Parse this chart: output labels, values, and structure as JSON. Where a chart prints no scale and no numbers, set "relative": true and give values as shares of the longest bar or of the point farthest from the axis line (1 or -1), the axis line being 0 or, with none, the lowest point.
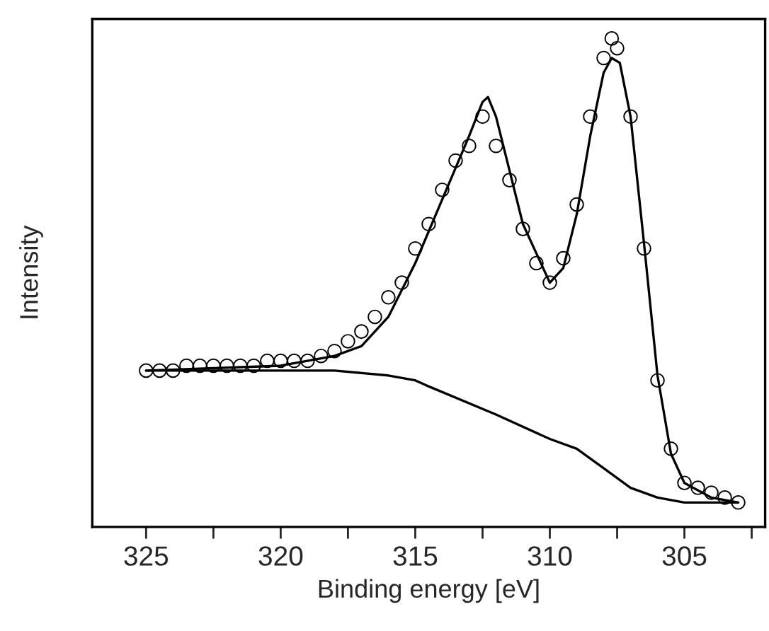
{
  "chart_data": {
    "type": "line",
    "xlabel": "Binding energy [eV]",
    "ylabel": "Intensity",
    "relative": true,
    "grid": false,
    "legend": false,
    "xlim": [
      327,
      302
    ],
    "xticks": [
      325,
      {
        "value": 322.5,
        "label": null
      },
      320,
      {
        "value": 317.5,
        "label": null
      },
      315,
      {
        "value": 312.5,
        "label": null
      },
      310,
      {
        "value": 307.5,
        "label": null
      },
      305,
      {
        "value": 302.5,
        "label": null
      }
    ],
    "series": [
      {
        "type": "scatter",
        "marker": "circle",
        "color": "#000000",
        "x": [
          325,
          324.5,
          324,
          323.5,
          323,
          322.5,
          322,
          321.5,
          321,
          320.5,
          320,
          319.5,
          319,
          318.5,
          318,
          317.5,
          317,
          316.5,
          316,
          315.5,
          315,
          314.5,
          314,
          313.5,
          313,
          312.5,
          312,
          311.5,
          311,
          310.5,
          310,
          309.5,
          309,
          308.5,
          308,
          307.7,
          307.5,
          307,
          306.5,
          306,
          305.5,
          305,
          304.5,
          304,
          303.5,
          303
        ],
        "values": [
          0.32,
          0.32,
          0.32,
          0.33,
          0.33,
          0.33,
          0.33,
          0.33,
          0.33,
          0.34,
          0.34,
          0.34,
          0.34,
          0.35,
          0.36,
          0.38,
          0.4,
          0.43,
          0.47,
          0.5,
          0.57,
          0.62,
          0.69,
          0.75,
          0.78,
          0.84,
          0.78,
          0.71,
          0.61,
          0.54,
          0.5,
          0.55,
          0.66,
          0.84,
          0.96,
          1.0,
          0.98,
          0.84,
          0.57,
          0.3,
          0.16,
          0.09,
          0.08,
          0.07,
          0.06,
          0.05
        ]
      },
      {
        "marker": "none",
        "line_style": "solid",
        "color": "#000000",
        "x": [
          325,
          320,
          318,
          317,
          316,
          315,
          314,
          313,
          312.5,
          312.3,
          312,
          311,
          310,
          309.5,
          309,
          308.5,
          308,
          307.7,
          307.4,
          307,
          306.5,
          306,
          305.5,
          305,
          304,
          303
        ],
        "values": [
          0.32,
          0.33,
          0.35,
          0.37,
          0.43,
          0.54,
          0.67,
          0.8,
          0.87,
          0.88,
          0.84,
          0.62,
          0.5,
          0.53,
          0.64,
          0.8,
          0.93,
          0.96,
          0.95,
          0.84,
          0.58,
          0.31,
          0.15,
          0.09,
          0.06,
          0.05
        ]
      },
      {
        "marker": "none",
        "line_style": "solid",
        "color": "#000000",
        "x": [
          325,
          318,
          316,
          315,
          314.6,
          312,
          310,
          309,
          308,
          307,
          306,
          305,
          303
        ],
        "values": [
          0.32,
          0.32,
          0.31,
          0.3,
          0.29,
          0.23,
          0.18,
          0.16,
          0.12,
          0.08,
          0.06,
          0.05,
          0.05
        ]
      }
    ]
  }
}
